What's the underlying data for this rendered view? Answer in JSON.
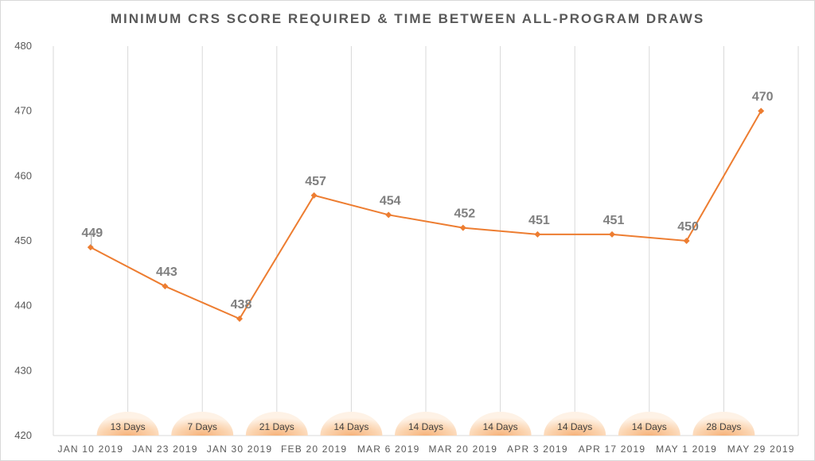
{
  "chart_data": {
    "type": "line",
    "title": "MINIMUM CRS SCORE REQUIRED & TIME BETWEEN ALL-PROGRAM DRAWS",
    "categories": [
      "JAN 10 2019",
      "JAN 23 2019",
      "JAN 30 2019",
      "FEB 20 2019",
      "MAR 6 2019",
      "MAR 20 2019",
      "APR 3 2019",
      "APR 17 2019",
      "MAY 1 2019",
      "MAY 29 2019"
    ],
    "series": [
      {
        "values": [
          449,
          443,
          438,
          457,
          454,
          452,
          451,
          451,
          450,
          470
        ]
      }
    ],
    "intervals": [
      "13 Days",
      "7 Days",
      "21 Days",
      "14 Days",
      "14 Days",
      "14 Days",
      "14 Days",
      "14 Days",
      "28 Days"
    ],
    "yticks": [
      420,
      430,
      440,
      450,
      460,
      470,
      480
    ],
    "ylim": [
      420,
      480
    ],
    "grid": "vertical",
    "legend": "none",
    "colors": {
      "line": "#ed7d31",
      "grid": "#d9d9d9",
      "axis_text": "#595959",
      "data_label": "#7f7f7f",
      "bubble_light": "#fde9d9",
      "bubble_dark": "#f8c79a"
    }
  }
}
